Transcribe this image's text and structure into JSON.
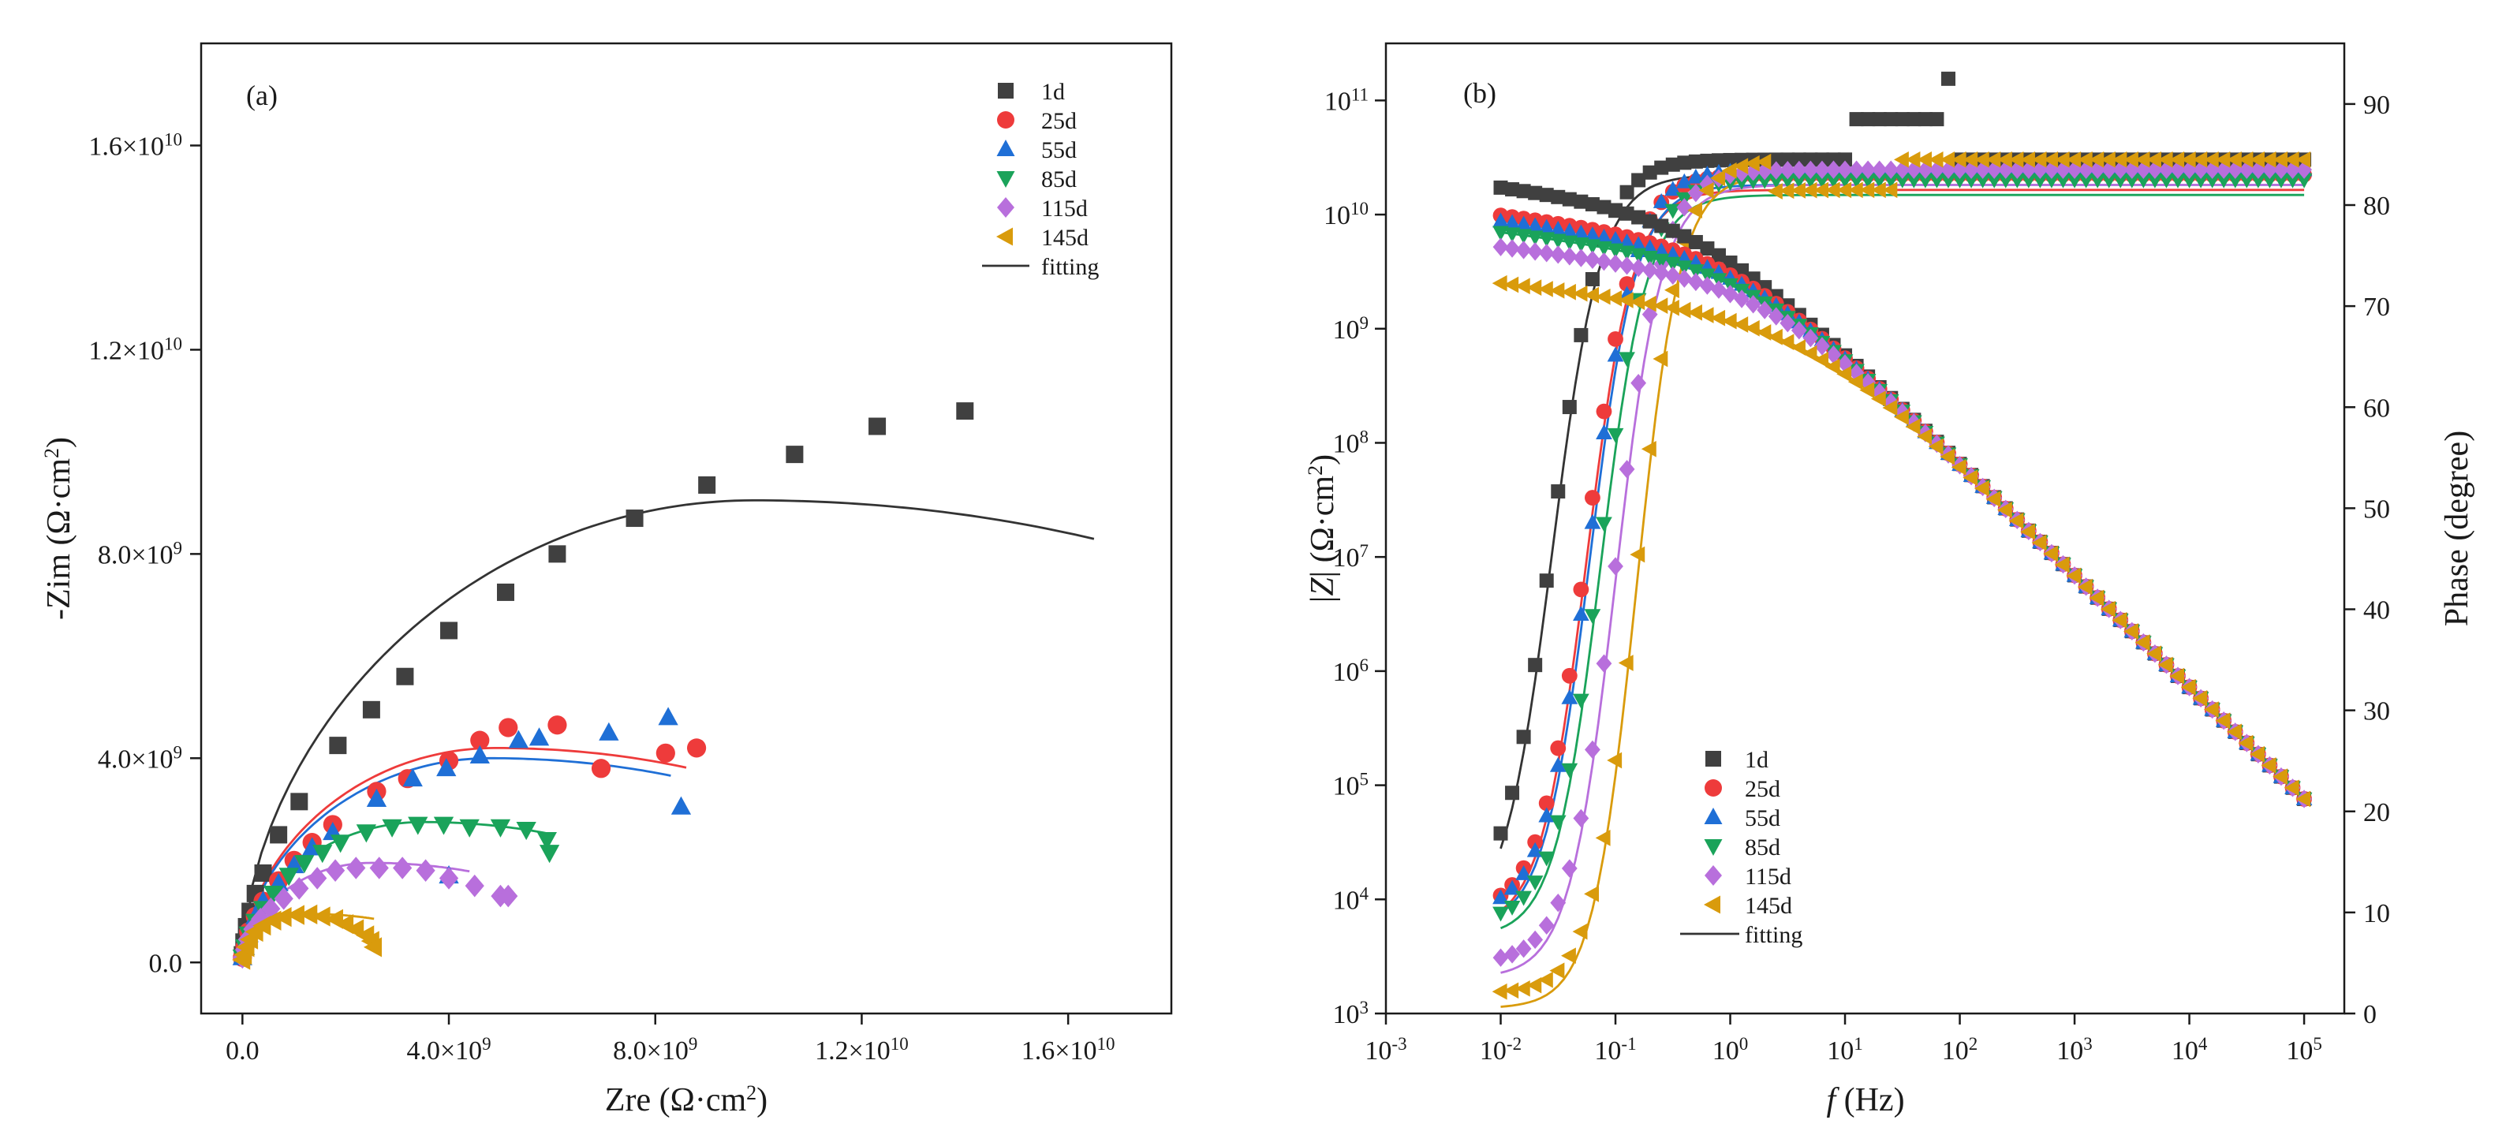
{
  "colors": {
    "1d": "#404040",
    "25d": "#ee3b3b",
    "55d": "#1f6fd6",
    "85d": "#1aa35a",
    "115d": "#b86fdc",
    "145d": "#d99b0c",
    "fitting": "#333333"
  },
  "chart_data": [
    {
      "type": "scatter",
      "panel_label": "(a)",
      "title": "",
      "xlabel": "Zre (Ω·cm²)",
      "xlabel_main": "Zre (Ω·cm",
      "xlabel_sup": "2",
      "xlabel_end": ")",
      "ylabel": "-Zim (Ω·cm²)",
      "ylabel_main": "-Zim (Ω·cm",
      "ylabel_sup": "2",
      "ylabel_end": ")",
      "xlim": [
        -800000000.0,
        18000000000.0
      ],
      "ylim": [
        -1000000000.0,
        18000000000.0
      ],
      "xticks": [
        {
          "value": 0,
          "mant": "0.0",
          "exp": ""
        },
        {
          "value": 4000000000.0,
          "mant": "4.0×10",
          "exp": "9"
        },
        {
          "value": 8000000000.0,
          "mant": "8.0×10",
          "exp": "9"
        },
        {
          "value": 12000000000.0,
          "mant": "1.2×10",
          "exp": "10"
        },
        {
          "value": 16000000000.0,
          "mant": "1.6×10",
          "exp": "10"
        }
      ],
      "yticks": [
        {
          "value": 0,
          "mant": "0.0",
          "exp": ""
        },
        {
          "value": 4000000000.0,
          "mant": "4.0×10",
          "exp": "9"
        },
        {
          "value": 8000000000.0,
          "mant": "8.0×10",
          "exp": "9"
        },
        {
          "value": 12000000000.0,
          "mant": "1.2×10",
          "exp": "10"
        },
        {
          "value": 16000000000.0,
          "mant": "1.6×10",
          "exp": "10"
        }
      ],
      "legend": {
        "position": "top-right",
        "entries": [
          "1d",
          "25d",
          "55d",
          "85d",
          "115d",
          "145d",
          "fitting"
        ]
      },
      "series": [
        {
          "name": "1d",
          "marker": "square",
          "x": [
            0,
            30000000.0,
            80000000.0,
            150000000.0,
            250000000.0,
            400000000.0,
            700000000.0,
            1100000000.0,
            1850000000.0,
            2500000000.0,
            3150000000.0,
            4000000000.0,
            5100000000.0,
            6100000000.0,
            7600000000.0,
            9000000000.0,
            10700000000.0,
            12300000000.0,
            14000000000.0
          ],
          "y": [
            150000000.0,
            400000000.0,
            700000000.0,
            1000000000.0,
            1350000000.0,
            1750000000.0,
            2500000000.0,
            3150000000.0,
            4250000000.0,
            4950000000.0,
            5600000000.0,
            6500000000.0,
            7250000000.0,
            8000000000.0,
            8700000000.0,
            9350000000.0,
            9950000000.0,
            10500000000.0,
            10800000000.0
          ]
        },
        {
          "name": "25d",
          "marker": "circle",
          "x": [
            0,
            50000000.0,
            120000000.0,
            250000000.0,
            400000000.0,
            700000000.0,
            1000000000.0,
            1350000000.0,
            1750000000.0,
            2600000000.0,
            3200000000.0,
            4000000000.0,
            4600000000.0,
            5150000000.0,
            6100000000.0,
            6950000000.0,
            8200000000.0,
            8800000000.0
          ],
          "y": [
            100000000.0,
            300000000.0,
            600000000.0,
            900000000.0,
            1200000000.0,
            1600000000.0,
            2000000000.0,
            2350000000.0,
            2700000000.0,
            3350000000.0,
            3600000000.0,
            3950000000.0,
            4350000000.0,
            4600000000.0,
            4650000000.0,
            3800000000.0,
            4100000000.0,
            4200000000.0
          ]
        },
        {
          "name": "55d",
          "marker": "triangle-up",
          "x": [
            0,
            50000000.0,
            120000000.0,
            250000000.0,
            400000000.0,
            700000000.0,
            1000000000.0,
            1350000000.0,
            1750000000.0,
            2600000000.0,
            3300000000.0,
            3950000000.0,
            4600000000.0,
            5350000000.0,
            5750000000.0,
            7100000000.0,
            8250000000.0,
            8500000000.0,
            4000000000.0
          ],
          "y": [
            100000000.0,
            300000000.0,
            550000000.0,
            900000000.0,
            1200000000.0,
            1550000000.0,
            1900000000.0,
            2250000000.0,
            2550000000.0,
            3200000000.0,
            3600000000.0,
            3800000000.0,
            4050000000.0,
            4350000000.0,
            4400000000.0,
            4500000000.0,
            4800000000.0,
            3050000000.0,
            1700000000.0
          ]
        },
        {
          "name": "85d",
          "marker": "triangle-down",
          "x": [
            0,
            50000000.0,
            120000000.0,
            250000000.0,
            400000000.0,
            600000000.0,
            900000000.0,
            1200000000.0,
            1550000000.0,
            1900000000.0,
            2400000000.0,
            2900000000.0,
            3400000000.0,
            3900000000.0,
            4400000000.0,
            5000000000.0,
            5500000000.0,
            5900000000.0,
            5950000000.0
          ],
          "y": [
            100000000.0,
            300000000.0,
            550000000.0,
            800000000.0,
            1050000000.0,
            1350000000.0,
            1700000000.0,
            1950000000.0,
            2150000000.0,
            2350000000.0,
            2550000000.0,
            2650000000.0,
            2700000000.0,
            2700000000.0,
            2650000000.0,
            2650000000.0,
            2600000000.0,
            2400000000.0,
            2150000000.0
          ]
        },
        {
          "name": "115d",
          "marker": "diamond",
          "x": [
            0,
            40000000.0,
            100000000.0,
            200000000.0,
            350000000.0,
            550000000.0,
            800000000.0,
            1100000000.0,
            1450000000.0,
            1800000000.0,
            2200000000.0,
            2650000000.0,
            3100000000.0,
            3550000000.0,
            4000000000.0,
            4500000000.0,
            5000000000.0,
            5150000000.0
          ],
          "y": [
            100000000.0,
            250000000.0,
            450000000.0,
            650000000.0,
            850000000.0,
            1050000000.0,
            1250000000.0,
            1450000000.0,
            1650000000.0,
            1800000000.0,
            1850000000.0,
            1850000000.0,
            1850000000.0,
            1800000000.0,
            1650000000.0,
            1500000000.0,
            1300000000.0,
            1300000000.0
          ]
        },
        {
          "name": "145d",
          "marker": "triangle-left",
          "x": [
            0,
            30000000.0,
            80000000.0,
            150000000.0,
            250000000.0,
            400000000.0,
            600000000.0,
            800000000.0,
            1050000000.0,
            1300000000.0,
            1550000000.0,
            1800000000.0,
            2000000000.0,
            2200000000.0,
            2400000000.0,
            2500000000.0,
            2550000000.0
          ],
          "y": [
            50000000.0,
            150000000.0,
            300000000.0,
            450000000.0,
            600000000.0,
            720000000.0,
            820000000.0,
            890000000.0,
            930000000.0,
            940000000.0,
            900000000.0,
            850000000.0,
            750000000.0,
            650000000.0,
            530000000.0,
            420000000.0,
            300000000.0
          ]
        }
      ],
      "fits": [
        {
          "name": "1d",
          "R": 16500000000.0,
          "mid": 9900000000.0,
          "peak": 9050000000.0,
          "x_end": 16500000000.0
        },
        {
          "name": "25d",
          "R": 8600000000.0,
          "mid": 4900000000.0,
          "peak": 4200000000.0,
          "x_end": 8600000000.0
        },
        {
          "name": "55d",
          "R": 8400000000.0,
          "mid": 4800000000.0,
          "peak": 4000000000.0,
          "x_end": 8300000000.0
        },
        {
          "name": "85d",
          "R": 6000000000.0,
          "mid": 3500000000.0,
          "peak": 2750000000.0,
          "x_end": 5900000000.0
        },
        {
          "name": "115d",
          "R": 4500000000.0,
          "mid": 2500000000.0,
          "peak": 1950000000.0,
          "x_end": 4400000000.0
        },
        {
          "name": "145d",
          "R": 2600000000.0,
          "mid": 1300000000.0,
          "peak": 950000000.0,
          "x_end": 2550000000.0
        }
      ]
    },
    {
      "type": "scatter",
      "panel_label": "(b)",
      "title": "",
      "xlabel": "f (Hz)",
      "xlabel_italic": "f",
      "xlabel_rest": " (Hz)",
      "ylabel": "|Z| (Ω·cm²)",
      "ylabel_italic": "Z",
      "ylabel_rest": " (Ω·cm",
      "ylabel_sup": "2",
      "ylabel_end": ")",
      "y2label": "Phase (degree)",
      "xlim_log10": [
        -3,
        5.35
      ],
      "ylim_log10": [
        3,
        11.5
      ],
      "y2lim": [
        0,
        96
      ],
      "xticks_exp": [
        "-3",
        "-2",
        "-1",
        "0",
        "1",
        "2",
        "3",
        "4",
        "5"
      ],
      "yticks_exp": [
        "3",
        "4",
        "5",
        "6",
        "7",
        "8",
        "9",
        "10",
        "11"
      ],
      "y2ticks": [
        "0",
        "10",
        "20",
        "30",
        "40",
        "50",
        "60",
        "70",
        "80",
        "90"
      ],
      "tick_base": "10",
      "legend": {
        "position": "bottom-left",
        "entries": [
          "1d",
          "25d",
          "55d",
          "85d",
          "115d",
          "145d",
          "fitting"
        ]
      },
      "modulus": [
        {
          "name": "1d",
          "lowf_log10Z": 10.25
        },
        {
          "name": "25d",
          "lowf_log10Z": 10.0
        },
        {
          "name": "55d",
          "lowf_log10Z": 9.95
        },
        {
          "name": "85d",
          "lowf_log10Z": 9.85
        },
        {
          "name": "115d",
          "lowf_log10Z": 9.72
        },
        {
          "name": "145d",
          "lowf_log10Z": 9.4
        }
      ],
      "modulus_highf": {
        "log10Z_at_1Hz": 9.78,
        "slope": -0.98
      },
      "phase": [
        {
          "name": "1d",
          "center_log10f": -1.55,
          "width": 0.42,
          "low": 10,
          "plateau": 84.5
        },
        {
          "name": "25d",
          "center_log10f": -1.25,
          "width": 0.4,
          "low": 10,
          "plateau": 83.0
        },
        {
          "name": "55d",
          "center_log10f": -1.22,
          "width": 0.4,
          "low": 10,
          "plateau": 83.5
        },
        {
          "name": "85d",
          "center_log10f": -1.13,
          "width": 0.4,
          "low": 9,
          "plateau": 82.5
        },
        {
          "name": "115d",
          "center_log10f": -1.0,
          "width": 0.4,
          "low": 5,
          "plateau": 83.5
        },
        {
          "name": "145d",
          "center_log10f": -0.82,
          "width": 0.38,
          "low": 2,
          "plateau": 84.5
        }
      ]
    }
  ]
}
